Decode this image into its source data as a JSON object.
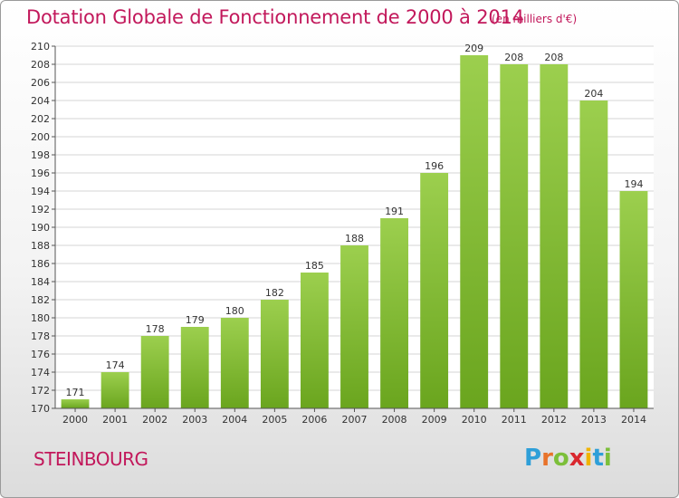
{
  "header": {
    "title": "Dotation Globale de Fonctionnement de 2000 à 2014",
    "unit": "(en milliers d'€)"
  },
  "footer": {
    "commune": "STEINBOURG",
    "brand": {
      "letters": [
        "P",
        "r",
        "o",
        "x",
        "i",
        "t",
        "i"
      ],
      "colors": [
        "#2e9fd8",
        "#e8732a",
        "#7cbf3a",
        "#d9272e",
        "#f0b400",
        "#2e9fd8",
        "#7cbf3a"
      ]
    }
  },
  "chart_data": {
    "type": "bar",
    "title": "Dotation Globale de Fonctionnement de 2000 à 2014",
    "subtitle": "(en milliers d'€)",
    "categories": [
      "2000",
      "2001",
      "2002",
      "2003",
      "2004",
      "2005",
      "2006",
      "2007",
      "2008",
      "2009",
      "2010",
      "2011",
      "2012",
      "2013",
      "2014"
    ],
    "values": [
      171,
      174,
      178,
      179,
      180,
      182,
      185,
      188,
      191,
      196,
      209,
      208,
      208,
      204,
      194
    ],
    "ylim": [
      170,
      210
    ],
    "yticks": [
      170,
      172,
      174,
      176,
      178,
      180,
      182,
      184,
      186,
      188,
      190,
      192,
      194,
      196,
      198,
      200,
      202,
      204,
      206,
      208,
      210
    ],
    "grid": true,
    "data_labels": true,
    "colors": {
      "bar_light": "#9ccf4e",
      "bar_dark": "#6aa51e",
      "grid": "#d6d6d6"
    }
  }
}
